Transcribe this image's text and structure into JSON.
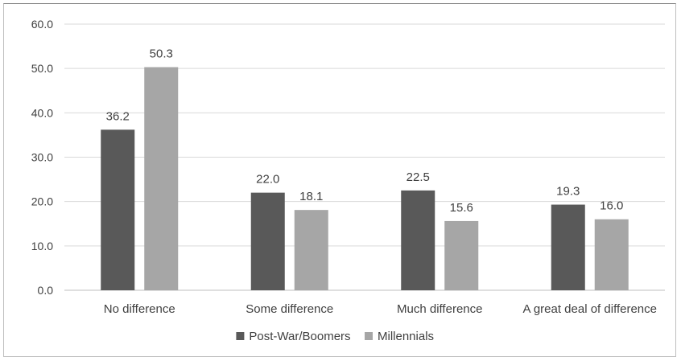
{
  "chart_data": {
    "type": "bar",
    "categories": [
      "No difference",
      "Some difference",
      "Much difference",
      "A great deal of difference"
    ],
    "series": [
      {
        "name": "Post-War/Boomers",
        "values": [
          36.2,
          22.0,
          22.5,
          19.3
        ],
        "color": "#595959"
      },
      {
        "name": "Millennials",
        "values": [
          50.3,
          18.1,
          15.6,
          16.0
        ],
        "color": "#a6a6a6"
      }
    ],
    "data_labels": [
      [
        "36.2",
        "22.0",
        "22.5",
        "19.3"
      ],
      [
        "50.3",
        "18.1",
        "15.6",
        "16.0"
      ]
    ],
    "yticks": [
      "0.0",
      "10.0",
      "20.0",
      "30.0",
      "40.0",
      "50.0",
      "60.0"
    ],
    "ylim": [
      0,
      60
    ],
    "grid": true,
    "legend_position": "bottom",
    "title": "",
    "xlabel": "",
    "ylabel": ""
  }
}
